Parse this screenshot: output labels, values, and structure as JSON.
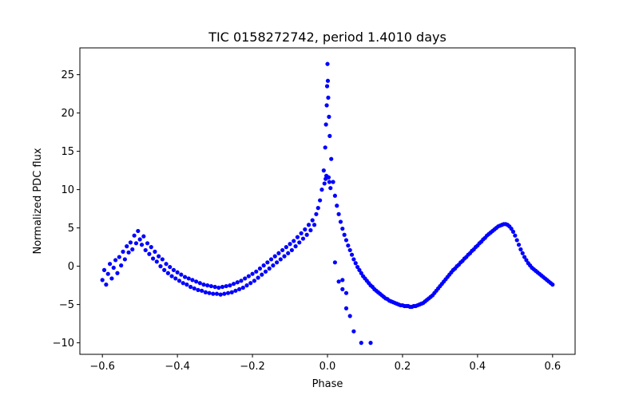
{
  "chart_data": {
    "type": "scatter",
    "title": "TIC 0158272742, period 1.4010 days",
    "xlabel": "Phase",
    "ylabel": "Normalized PDC flux",
    "xlim": [
      -0.66,
      0.66
    ],
    "ylim": [
      -11.5,
      28.5
    ],
    "xticks": [
      -0.6,
      -0.4,
      -0.2,
      0.0,
      0.2,
      0.4,
      0.6
    ],
    "xtick_labels": [
      "−0.6",
      "−0.4",
      "−0.2",
      "0.0",
      "0.2",
      "0.4",
      "0.6"
    ],
    "yticks": [
      -10,
      -5,
      0,
      5,
      10,
      15,
      20,
      25
    ],
    "ytick_labels": [
      "−10",
      "−5",
      "0",
      "5",
      "10",
      "15",
      "20",
      "25"
    ],
    "grid": false,
    "series": [
      {
        "color": "#0000ff",
        "marker": "circle",
        "points": [
          [
            -0.6,
            -1.8
          ],
          [
            -0.595,
            -0.5
          ],
          [
            -0.59,
            -2.4
          ],
          [
            -0.585,
            -1.0
          ],
          [
            -0.58,
            0.3
          ],
          [
            -0.575,
            -1.6
          ],
          [
            -0.57,
            -0.2
          ],
          [
            -0.565,
            0.8
          ],
          [
            -0.56,
            -0.9
          ],
          [
            -0.555,
            1.2
          ],
          [
            -0.55,
            0.1
          ],
          [
            -0.545,
            1.9
          ],
          [
            -0.54,
            0.9
          ],
          [
            -0.535,
            2.6
          ],
          [
            -0.53,
            1.8
          ],
          [
            -0.525,
            3.1
          ],
          [
            -0.52,
            2.2
          ],
          [
            -0.515,
            4.0
          ],
          [
            -0.51,
            3.0
          ],
          [
            -0.505,
            4.6
          ],
          [
            -0.5,
            3.5
          ],
          [
            -0.495,
            2.8
          ],
          [
            -0.49,
            3.9
          ],
          [
            -0.485,
            2.1
          ],
          [
            -0.48,
            3.0
          ],
          [
            -0.475,
            1.6
          ],
          [
            -0.47,
            2.5
          ],
          [
            -0.465,
            1.0
          ],
          [
            -0.46,
            1.9
          ],
          [
            -0.455,
            0.6
          ],
          [
            -0.45,
            1.3
          ],
          [
            -0.445,
            0.0
          ],
          [
            -0.44,
            0.9
          ],
          [
            -0.435,
            -0.5
          ],
          [
            -0.43,
            0.3
          ],
          [
            -0.425,
            -0.9
          ],
          [
            -0.42,
            -0.1
          ],
          [
            -0.415,
            -1.3
          ],
          [
            -0.41,
            -0.5
          ],
          [
            -0.405,
            -1.6
          ],
          [
            -0.4,
            -0.8
          ],
          [
            -0.395,
            -1.9
          ],
          [
            -0.39,
            -1.1
          ],
          [
            -0.385,
            -2.2
          ],
          [
            -0.38,
            -1.4
          ],
          [
            -0.375,
            -2.4
          ],
          [
            -0.37,
            -1.6
          ],
          [
            -0.365,
            -2.7
          ],
          [
            -0.36,
            -1.8
          ],
          [
            -0.355,
            -2.9
          ],
          [
            -0.35,
            -2.0
          ],
          [
            -0.345,
            -3.1
          ],
          [
            -0.34,
            -2.2
          ],
          [
            -0.335,
            -3.2
          ],
          [
            -0.33,
            -2.4
          ],
          [
            -0.325,
            -3.4
          ],
          [
            -0.32,
            -2.5
          ],
          [
            -0.315,
            -3.5
          ],
          [
            -0.31,
            -2.6
          ],
          [
            -0.305,
            -3.6
          ],
          [
            -0.3,
            -2.7
          ],
          [
            -0.295,
            -3.6
          ],
          [
            -0.29,
            -2.8
          ],
          [
            -0.285,
            -3.7
          ],
          [
            -0.28,
            -2.7
          ],
          [
            -0.275,
            -3.6
          ],
          [
            -0.27,
            -2.6
          ],
          [
            -0.265,
            -3.5
          ],
          [
            -0.26,
            -2.5
          ],
          [
            -0.255,
            -3.4
          ],
          [
            -0.25,
            -2.3
          ],
          [
            -0.245,
            -3.2
          ],
          [
            -0.24,
            -2.1
          ],
          [
            -0.235,
            -3.0
          ],
          [
            -0.23,
            -1.9
          ],
          [
            -0.225,
            -2.8
          ],
          [
            -0.22,
            -1.6
          ],
          [
            -0.215,
            -2.5
          ],
          [
            -0.21,
            -1.3
          ],
          [
            -0.205,
            -2.2
          ],
          [
            -0.2,
            -1.0
          ],
          [
            -0.195,
            -1.9
          ],
          [
            -0.19,
            -0.7
          ],
          [
            -0.185,
            -1.5
          ],
          [
            -0.18,
            -0.3
          ],
          [
            -0.175,
            -1.1
          ],
          [
            -0.17,
            0.1
          ],
          [
            -0.165,
            -0.7
          ],
          [
            -0.16,
            0.5
          ],
          [
            -0.155,
            -0.3
          ],
          [
            -0.15,
            0.9
          ],
          [
            -0.145,
            0.1
          ],
          [
            -0.14,
            1.3
          ],
          [
            -0.135,
            0.5
          ],
          [
            -0.13,
            1.7
          ],
          [
            -0.125,
            0.9
          ],
          [
            -0.12,
            2.1
          ],
          [
            -0.115,
            1.3
          ],
          [
            -0.11,
            2.5
          ],
          [
            -0.105,
            1.7
          ],
          [
            -0.1,
            2.9
          ],
          [
            -0.095,
            2.1
          ],
          [
            -0.09,
            3.3
          ],
          [
            -0.085,
            2.6
          ],
          [
            -0.08,
            3.8
          ],
          [
            -0.075,
            3.1
          ],
          [
            -0.07,
            4.3
          ],
          [
            -0.065,
            3.6
          ],
          [
            -0.06,
            4.8
          ],
          [
            -0.055,
            4.1
          ],
          [
            -0.05,
            5.4
          ],
          [
            -0.045,
            4.7
          ],
          [
            -0.04,
            6.0
          ],
          [
            -0.035,
            5.4
          ],
          [
            -0.03,
            6.8
          ],
          [
            -0.025,
            7.6
          ],
          [
            -0.02,
            8.6
          ],
          [
            -0.015,
            10.0
          ],
          [
            -0.01,
            12.5
          ],
          [
            -0.008,
            10.8
          ],
          [
            -0.006,
            15.5
          ],
          [
            -0.005,
            11.4
          ],
          [
            -0.004,
            18.5
          ],
          [
            -0.003,
            11.8
          ],
          [
            -0.002,
            21.0
          ],
          [
            -0.001,
            23.5
          ],
          [
            0.0,
            26.4
          ],
          [
            0.001,
            24.2
          ],
          [
            0.002,
            22.0
          ],
          [
            0.003,
            11.6
          ],
          [
            0.004,
            19.5
          ],
          [
            0.005,
            11.0
          ],
          [
            0.006,
            17.0
          ],
          [
            0.008,
            10.2
          ],
          [
            0.01,
            14.0
          ],
          [
            0.015,
            11.0
          ],
          [
            0.02,
            9.2
          ],
          [
            0.025,
            7.9
          ],
          [
            0.03,
            6.8
          ],
          [
            0.035,
            5.8
          ],
          [
            0.04,
            4.9
          ],
          [
            0.045,
            4.1
          ],
          [
            0.05,
            3.4
          ],
          [
            0.055,
            2.7
          ],
          [
            0.06,
            2.1
          ],
          [
            0.065,
            1.5
          ],
          [
            0.07,
            0.9
          ],
          [
            0.075,
            0.4
          ],
          [
            0.08,
            -0.1
          ],
          [
            0.085,
            -0.5
          ],
          [
            0.09,
            -0.9
          ],
          [
            0.095,
            -1.3
          ],
          [
            0.1,
            -1.6
          ],
          [
            0.105,
            -1.9
          ],
          [
            0.11,
            -2.2
          ],
          [
            0.115,
            -2.5
          ],
          [
            0.12,
            -2.7
          ],
          [
            0.125,
            -3.0
          ],
          [
            0.13,
            -3.2
          ],
          [
            0.135,
            -3.4
          ],
          [
            0.14,
            -3.6
          ],
          [
            0.145,
            -3.8
          ],
          [
            0.15,
            -4.0
          ],
          [
            0.155,
            -4.2
          ],
          [
            0.16,
            -4.3
          ],
          [
            0.165,
            -4.5
          ],
          [
            0.17,
            -4.6
          ],
          [
            0.175,
            -4.7
          ],
          [
            0.18,
            -4.8
          ],
          [
            0.185,
            -4.9
          ],
          [
            0.19,
            -5.0
          ],
          [
            0.195,
            -5.1
          ],
          [
            0.2,
            -5.1
          ],
          [
            0.205,
            -5.2
          ],
          [
            0.21,
            -5.2
          ],
          [
            0.215,
            -5.2
          ],
          [
            0.22,
            -5.3
          ],
          [
            0.225,
            -5.3
          ],
          [
            0.23,
            -5.2
          ],
          [
            0.235,
            -5.2
          ],
          [
            0.24,
            -5.1
          ],
          [
            0.245,
            -5.0
          ],
          [
            0.25,
            -4.9
          ],
          [
            0.255,
            -4.8
          ],
          [
            0.26,
            -4.6
          ],
          [
            0.265,
            -4.4
          ],
          [
            0.27,
            -4.2
          ],
          [
            0.275,
            -4.0
          ],
          [
            0.28,
            -3.8
          ],
          [
            0.285,
            -3.5
          ],
          [
            0.29,
            -3.2
          ],
          [
            0.295,
            -2.9
          ],
          [
            0.3,
            -2.6
          ],
          [
            0.305,
            -2.3
          ],
          [
            0.31,
            -2.0
          ],
          [
            0.315,
            -1.7
          ],
          [
            0.32,
            -1.4
          ],
          [
            0.325,
            -1.1
          ],
          [
            0.33,
            -0.8
          ],
          [
            0.335,
            -0.5
          ],
          [
            0.34,
            -0.3
          ],
          [
            0.345,
            0.0
          ],
          [
            0.35,
            0.2
          ],
          [
            0.355,
            0.5
          ],
          [
            0.36,
            0.7
          ],
          [
            0.365,
            1.0
          ],
          [
            0.37,
            1.2
          ],
          [
            0.375,
            1.5
          ],
          [
            0.38,
            1.7
          ],
          [
            0.385,
            2.0
          ],
          [
            0.39,
            2.2
          ],
          [
            0.395,
            2.5
          ],
          [
            0.4,
            2.7
          ],
          [
            0.405,
            3.0
          ],
          [
            0.41,
            3.2
          ],
          [
            0.415,
            3.5
          ],
          [
            0.42,
            3.7
          ],
          [
            0.425,
            4.0
          ],
          [
            0.43,
            4.2
          ],
          [
            0.435,
            4.4
          ],
          [
            0.44,
            4.6
          ],
          [
            0.445,
            4.8
          ],
          [
            0.45,
            5.0
          ],
          [
            0.455,
            5.2
          ],
          [
            0.46,
            5.3
          ],
          [
            0.465,
            5.4
          ],
          [
            0.47,
            5.5
          ],
          [
            0.475,
            5.5
          ],
          [
            0.48,
            5.4
          ],
          [
            0.485,
            5.2
          ],
          [
            0.49,
            4.9
          ],
          [
            0.495,
            4.5
          ],
          [
            0.5,
            4.0
          ],
          [
            0.505,
            3.4
          ],
          [
            0.51,
            2.8
          ],
          [
            0.515,
            2.2
          ],
          [
            0.52,
            1.7
          ],
          [
            0.525,
            1.2
          ],
          [
            0.53,
            0.8
          ],
          [
            0.535,
            0.4
          ],
          [
            0.54,
            0.1
          ],
          [
            0.545,
            -0.2
          ],
          [
            0.55,
            -0.4
          ],
          [
            0.555,
            -0.6
          ],
          [
            0.56,
            -0.8
          ],
          [
            0.565,
            -1.0
          ],
          [
            0.57,
            -1.2
          ],
          [
            0.575,
            -1.4
          ],
          [
            0.58,
            -1.6
          ],
          [
            0.585,
            -1.8
          ],
          [
            0.59,
            -2.0
          ],
          [
            0.595,
            -2.2
          ],
          [
            0.6,
            -2.4
          ],
          [
            0.03,
            -2.0
          ],
          [
            0.04,
            -3.0
          ],
          [
            0.05,
            -5.5
          ],
          [
            0.06,
            -6.5
          ],
          [
            0.07,
            -8.5
          ],
          [
            0.09,
            -10.0
          ],
          [
            0.115,
            -10.0
          ],
          [
            0.05,
            -3.5
          ],
          [
            0.04,
            -1.8
          ],
          [
            0.02,
            0.5
          ]
        ]
      }
    ]
  }
}
